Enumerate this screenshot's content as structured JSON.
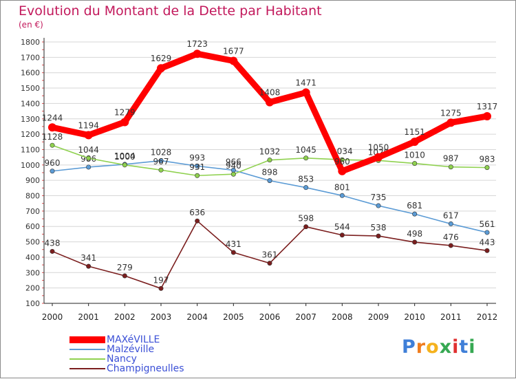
{
  "chart_data": {
    "type": "line",
    "title": "Evolution du Montant de la Dette par Habitant",
    "subtitle": "(en €)",
    "x": [
      "2000",
      "2001",
      "2002",
      "2003",
      "2004",
      "2005",
      "2006",
      "2007",
      "2008",
      "2009",
      "2010",
      "2011",
      "2012"
    ],
    "yticks": [
      100,
      200,
      300,
      400,
      500,
      600,
      700,
      800,
      900,
      1000,
      1100,
      1200,
      1300,
      1400,
      1500,
      1600,
      1700,
      1800
    ],
    "ylim": [
      100,
      1800
    ],
    "grid": "horizontal",
    "legend_position": "bottom-left",
    "series": [
      {
        "name": "MAXéVILLE",
        "color": "#ff0000",
        "values": [
          1244,
          1194,
          1279,
          1629,
          1723,
          1677,
          1408,
          1471,
          960,
          1050,
          1151,
          1275,
          1317
        ],
        "labels": [
          "1244",
          "1194",
          "1279",
          "1629",
          "1723",
          "1677",
          "1408",
          "1471",
          "960",
          "1050",
          "1151",
          "1275",
          "1317"
        ]
      },
      {
        "name": "Malzéville",
        "color": "#5b9bd5",
        "values": [
          960,
          986,
          1004,
          1028,
          993,
          966,
          898,
          853,
          801,
          735,
          681,
          617,
          561
        ],
        "labels": [
          "960",
          "986",
          "1004",
          "1028",
          "993",
          "966",
          "898",
          "853",
          "801",
          "735",
          "681",
          "617",
          "561"
        ]
      },
      {
        "name": "Nancy",
        "color": "#8fd14f",
        "values": [
          1128,
          1044,
          1000,
          967,
          931,
          940,
          1032,
          1045,
          1034,
          1029,
          1010,
          987,
          983
        ],
        "labels": [
          "1128",
          "1044",
          "1000",
          "967",
          "931",
          "940",
          "1032",
          "1045",
          "1034",
          "1029",
          "1010",
          "987",
          "983"
        ]
      },
      {
        "name": "Champigneulles",
        "color": "#7b1e1e",
        "values": [
          438,
          341,
          279,
          197,
          636,
          431,
          361,
          598,
          544,
          538,
          498,
          476,
          443
        ],
        "labels": [
          "438",
          "341",
          "279",
          "197",
          "636",
          "431",
          "361",
          "598",
          "544",
          "538",
          "498",
          "476",
          "443"
        ]
      }
    ]
  },
  "logo": {
    "text": "Proxiti",
    "letters": [
      "P",
      "r",
      "o",
      "x",
      "i",
      "t",
      "i"
    ],
    "colors": [
      "#3f7fd8",
      "#f07d1e",
      "#f5b21d",
      "#36a852",
      "#e03030",
      "#3f7fd8",
      "#36a852"
    ]
  }
}
